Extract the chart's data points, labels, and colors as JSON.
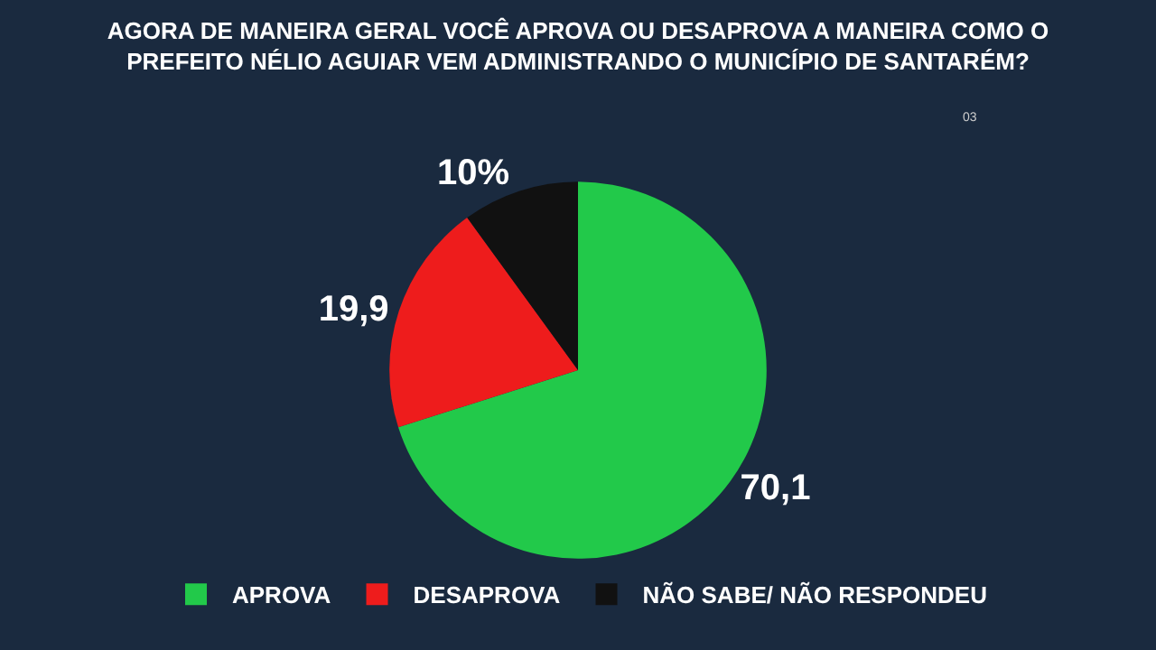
{
  "chart_data": {
    "type": "pie",
    "title": "AGORA DE MANEIRA GERAL VOCÊ APROVA OU DESAPROVA A MANEIRA COMO O PREFEITO NÉLIO AGUIAR VEM ADMINISTRANDO O MUNICÍPIO DE SANTARÉM?",
    "annotations": [
      "03"
    ],
    "categories": [
      "APROVA",
      "DESAPROVA",
      "NÃO SABE/ NÃO RESPONDEU"
    ],
    "values": [
      70.1,
      19.9,
      10
    ],
    "value_labels": [
      "70,1",
      "19,9",
      "10%"
    ],
    "colors": [
      "#22c94a",
      "#ee1c1c",
      "#111111"
    ],
    "legend": "bottom"
  }
}
